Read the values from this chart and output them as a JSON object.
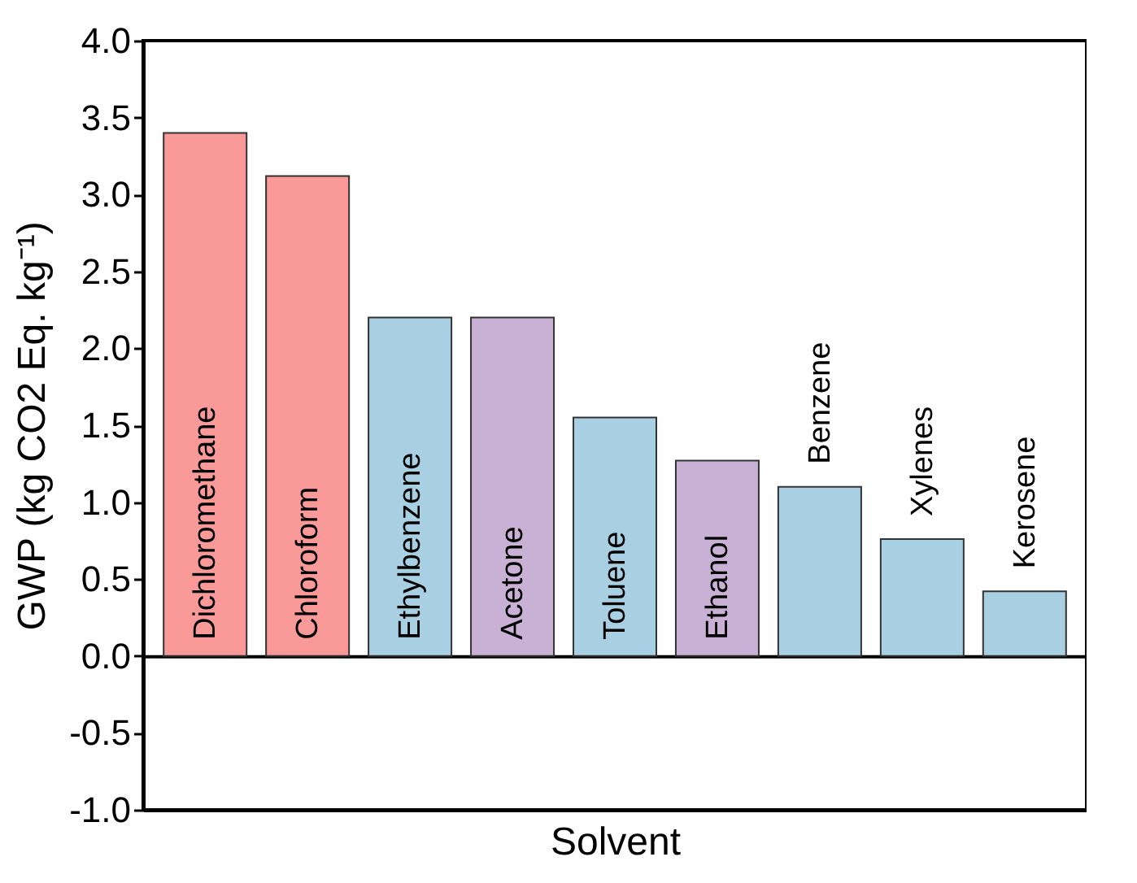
{
  "chart_data": {
    "type": "bar",
    "xlabel": "Solvent",
    "ylabel": "GWP (kg CO2 Eq. kg⁻¹)",
    "categories": [
      "Dichloromethane",
      "Chloroform",
      "Ethylbenzene",
      "Acetone",
      "Toluene",
      "Ethanol",
      "Benzene",
      "Xylenes",
      "Kerosene"
    ],
    "values": [
      3.4,
      3.12,
      2.2,
      2.2,
      1.55,
      1.27,
      1.1,
      0.76,
      0.42
    ],
    "colors": [
      "#f99a99",
      "#f99a99",
      "#a8cfe2",
      "#c9b1d6",
      "#a8cfe2",
      "#c9b1d6",
      "#a8cfe2",
      "#a8cfe2",
      "#a8cfe2"
    ],
    "ylim": [
      -1,
      4
    ],
    "yticks": [
      {
        "value": -1,
        "label": "-1.0"
      },
      {
        "value": -0.5,
        "label": "-0.5"
      },
      {
        "value": 0,
        "label": "0.0"
      },
      {
        "value": 0.5,
        "label": "0.5"
      },
      {
        "value": 1,
        "label": "1.0"
      },
      {
        "value": 1.5,
        "label": "1.5"
      },
      {
        "value": 2,
        "label": "2.0"
      },
      {
        "value": 2.5,
        "label": "2.5"
      },
      {
        "value": 3,
        "label": "3.0"
      },
      {
        "value": 3.5,
        "label": "3.5"
      },
      {
        "value": 4,
        "label": "4.0"
      }
    ]
  }
}
